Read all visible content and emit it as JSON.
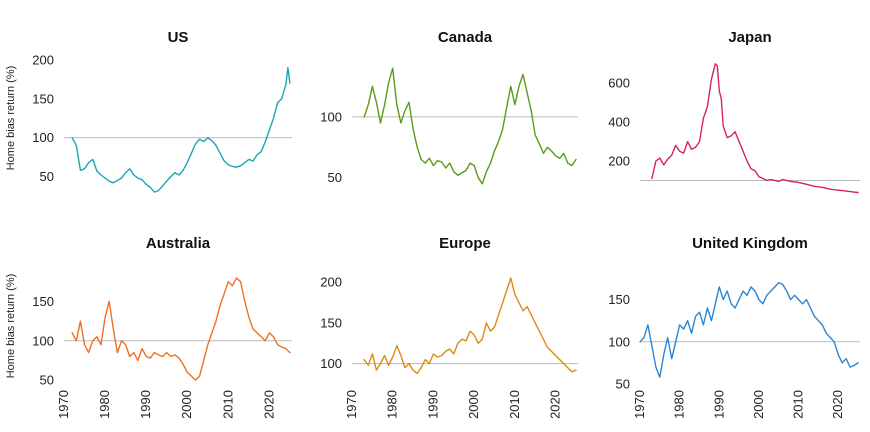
{
  "figure": {
    "shared_ylabel": "Home bias return (%)"
  },
  "chart_data": [
    {
      "type": "line",
      "title": "US",
      "color": "#1aa5b5",
      "ylabel": "Home bias return (%)",
      "xlim": [
        1970,
        2025.5
      ],
      "ylim": [
        25,
        205
      ],
      "yticks": [
        50,
        100,
        150,
        200
      ],
      "reference_y": 100,
      "series": [
        {
          "x": [
            1972,
            1973,
            1974,
            1975,
            1976,
            1977,
            1978,
            1979,
            1980,
            1981,
            1982,
            1983,
            1984,
            1985,
            1986,
            1987,
            1988,
            1989,
            1990,
            1991,
            1992,
            1993,
            1994,
            1995,
            1996,
            1997,
            1998,
            1999,
            2000,
            2001,
            2002,
            2003,
            2004,
            2005,
            2006,
            2007,
            2008,
            2009,
            2010,
            2011,
            2012,
            2013,
            2014,
            2015,
            2016,
            2017,
            2018,
            2019,
            2020,
            2021,
            2022,
            2023,
            2024,
            2024.5,
            2025
          ],
          "y": [
            100,
            90,
            58,
            60,
            68,
            72,
            57,
            52,
            48,
            44,
            42,
            45,
            48,
            55,
            60,
            52,
            48,
            46,
            40,
            36,
            30,
            32,
            38,
            44,
            50,
            55,
            52,
            58,
            68,
            80,
            92,
            98,
            95,
            100,
            96,
            90,
            80,
            70,
            65,
            63,
            62,
            64,
            68,
            72,
            70,
            78,
            82,
            95,
            110,
            125,
            145,
            150,
            168,
            190,
            170
          ]
        }
      ]
    },
    {
      "type": "line",
      "title": "Canada",
      "color": "#5a9b1a",
      "ylabel": "",
      "xlim": [
        1970,
        2025.5
      ],
      "ylim": [
        35,
        150
      ],
      "yticks": [
        50,
        100
      ],
      "reference_y": 100,
      "series": [
        {
          "x": [
            1973,
            1974,
            1975,
            1976,
            1977,
            1978,
            1979,
            1980,
            1981,
            1982,
            1983,
            1984,
            1985,
            1986,
            1987,
            1988,
            1989,
            1990,
            1991,
            1992,
            1993,
            1994,
            1995,
            1996,
            1997,
            1998,
            1999,
            2000,
            2001,
            2002,
            2003,
            2004,
            2005,
            2006,
            2007,
            2008,
            2009,
            2010,
            2011,
            2012,
            2013,
            2014,
            2015,
            2016,
            2017,
            2018,
            2019,
            2020,
            2021,
            2022,
            2023,
            2024,
            2025
          ],
          "y": [
            100,
            110,
            125,
            112,
            95,
            110,
            128,
            140,
            110,
            95,
            105,
            112,
            90,
            75,
            65,
            62,
            66,
            60,
            64,
            63,
            58,
            62,
            55,
            52,
            54,
            56,
            62,
            60,
            50,
            45,
            55,
            62,
            72,
            80,
            90,
            108,
            125,
            110,
            125,
            135,
            120,
            105,
            85,
            78,
            70,
            75,
            72,
            68,
            66,
            70,
            62,
            60,
            65
          ]
        }
      ]
    },
    {
      "type": "line",
      "title": "Japan",
      "color": "#d6225f",
      "ylabel": "",
      "xlim": [
        1970,
        2025.5
      ],
      "ylim": [
        20,
        740
      ],
      "yticks": [
        200,
        400,
        600
      ],
      "reference_y": 100,
      "series": [
        {
          "x": [
            1973,
            1974,
            1975,
            1976,
            1977,
            1978,
            1979,
            1980,
            1981,
            1982,
            1983,
            1984,
            1985,
            1986,
            1987,
            1988,
            1989,
            1989.5,
            1990,
            1990.5,
            1991,
            1992,
            1993,
            1994,
            1995,
            1996,
            1997,
            1998,
            1999,
            2000,
            2001,
            2002,
            2003,
            2004,
            2005,
            2006,
            2008,
            2010,
            2012,
            2014,
            2016,
            2018,
            2020,
            2022,
            2024,
            2025
          ],
          "y": [
            110,
            200,
            215,
            180,
            210,
            230,
            280,
            250,
            240,
            300,
            260,
            270,
            300,
            420,
            480,
            620,
            700,
            690,
            560,
            520,
            380,
            320,
            330,
            350,
            300,
            250,
            200,
            160,
            150,
            120,
            110,
            100,
            105,
            100,
            95,
            105,
            95,
            90,
            80,
            70,
            65,
            55,
            50,
            45,
            40,
            38
          ]
        }
      ]
    },
    {
      "type": "line",
      "title": "Australia",
      "color": "#f07021",
      "ylabel": "Home bias return (%)",
      "xlim": [
        1970,
        2025.5
      ],
      "ylim": [
        45,
        190
      ],
      "yticks": [
        50,
        100,
        150
      ],
      "xticks": [
        1970,
        1980,
        1990,
        2000,
        2010,
        2020
      ],
      "reference_y": 100,
      "series": [
        {
          "x": [
            1972,
            1973,
            1974,
            1975,
            1976,
            1977,
            1978,
            1979,
            1980,
            1981,
            1982,
            1983,
            1984,
            1985,
            1986,
            1987,
            1988,
            1989,
            1990,
            1991,
            1992,
            1993,
            1994,
            1995,
            1996,
            1997,
            1998,
            1999,
            2000,
            2001,
            2002,
            2003,
            2004,
            2005,
            2006,
            2007,
            2008,
            2009,
            2010,
            2011,
            2012,
            2013,
            2014,
            2015,
            2016,
            2017,
            2018,
            2019,
            2020,
            2021,
            2022,
            2023,
            2024,
            2025
          ],
          "y": [
            110,
            100,
            125,
            95,
            85,
            100,
            105,
            95,
            130,
            150,
            115,
            85,
            100,
            95,
            80,
            85,
            75,
            90,
            80,
            78,
            85,
            82,
            80,
            85,
            80,
            82,
            78,
            70,
            60,
            55,
            50,
            55,
            75,
            95,
            110,
            125,
            145,
            160,
            175,
            170,
            180,
            175,
            150,
            130,
            115,
            110,
            105,
            100,
            110,
            105,
            95,
            92,
            90,
            85
          ]
        }
      ]
    },
    {
      "type": "line",
      "title": "Europe",
      "color": "#e08a12",
      "ylabel": "",
      "xlim": [
        1970,
        2025.5
      ],
      "ylim": [
        75,
        215
      ],
      "yticks": [
        100,
        150,
        200
      ],
      "xticks": [
        1970,
        1980,
        1990,
        2000,
        2010,
        2020
      ],
      "reference_y": 100,
      "series": [
        {
          "x": [
            1973,
            1974,
            1975,
            1976,
            1977,
            1978,
            1979,
            1980,
            1981,
            1982,
            1983,
            1984,
            1985,
            1986,
            1987,
            1988,
            1989,
            1990,
            1991,
            1992,
            1993,
            1994,
            1995,
            1996,
            1997,
            1998,
            1999,
            2000,
            2001,
            2002,
            2003,
            2004,
            2005,
            2006,
            2007,
            2008,
            2009,
            2010,
            2011,
            2012,
            2013,
            2014,
            2015,
            2016,
            2017,
            2018,
            2019,
            2020,
            2021,
            2022,
            2023,
            2024,
            2025
          ],
          "y": [
            105,
            98,
            112,
            92,
            100,
            110,
            98,
            108,
            122,
            110,
            95,
            100,
            92,
            88,
            95,
            105,
            100,
            112,
            108,
            110,
            115,
            118,
            112,
            125,
            130,
            128,
            140,
            135,
            125,
            130,
            150,
            140,
            145,
            160,
            175,
            190,
            205,
            185,
            175,
            165,
            170,
            160,
            150,
            140,
            130,
            120,
            115,
            110,
            105,
            100,
            95,
            90,
            92
          ]
        }
      ]
    },
    {
      "type": "line",
      "title": "United Kingdom",
      "color": "#2a86d4",
      "ylabel": "",
      "xlim": [
        1970,
        2025.5
      ],
      "ylim": [
        50,
        185
      ],
      "yticks": [
        50,
        100,
        150
      ],
      "xticks": [
        1970,
        1980,
        1990,
        2000,
        2010,
        2020
      ],
      "reference_y": 100,
      "series": [
        {
          "x": [
            1970,
            1971,
            1972,
            1973,
            1974,
            1975,
            1976,
            1977,
            1978,
            1979,
            1980,
            1981,
            1982,
            1983,
            1984,
            1985,
            1986,
            1987,
            1988,
            1989,
            1990,
            1991,
            1992,
            1993,
            1994,
            1995,
            1996,
            1997,
            1998,
            1999,
            2000,
            2001,
            2002,
            2003,
            2004,
            2005,
            2006,
            2007,
            2008,
            2009,
            2010,
            2011,
            2012,
            2013,
            2014,
            2015,
            2016,
            2017,
            2018,
            2019,
            2020,
            2021,
            2022,
            2023,
            2024,
            2025
          ],
          "y": [
            100,
            105,
            120,
            95,
            70,
            58,
            85,
            105,
            80,
            100,
            120,
            115,
            125,
            110,
            130,
            135,
            120,
            140,
            125,
            145,
            165,
            150,
            160,
            145,
            140,
            150,
            160,
            155,
            165,
            160,
            150,
            145,
            155,
            160,
            165,
            170,
            168,
            160,
            150,
            155,
            150,
            145,
            150,
            140,
            130,
            125,
            120,
            110,
            105,
            100,
            85,
            75,
            80,
            70,
            72,
            75
          ]
        }
      ]
    }
  ]
}
